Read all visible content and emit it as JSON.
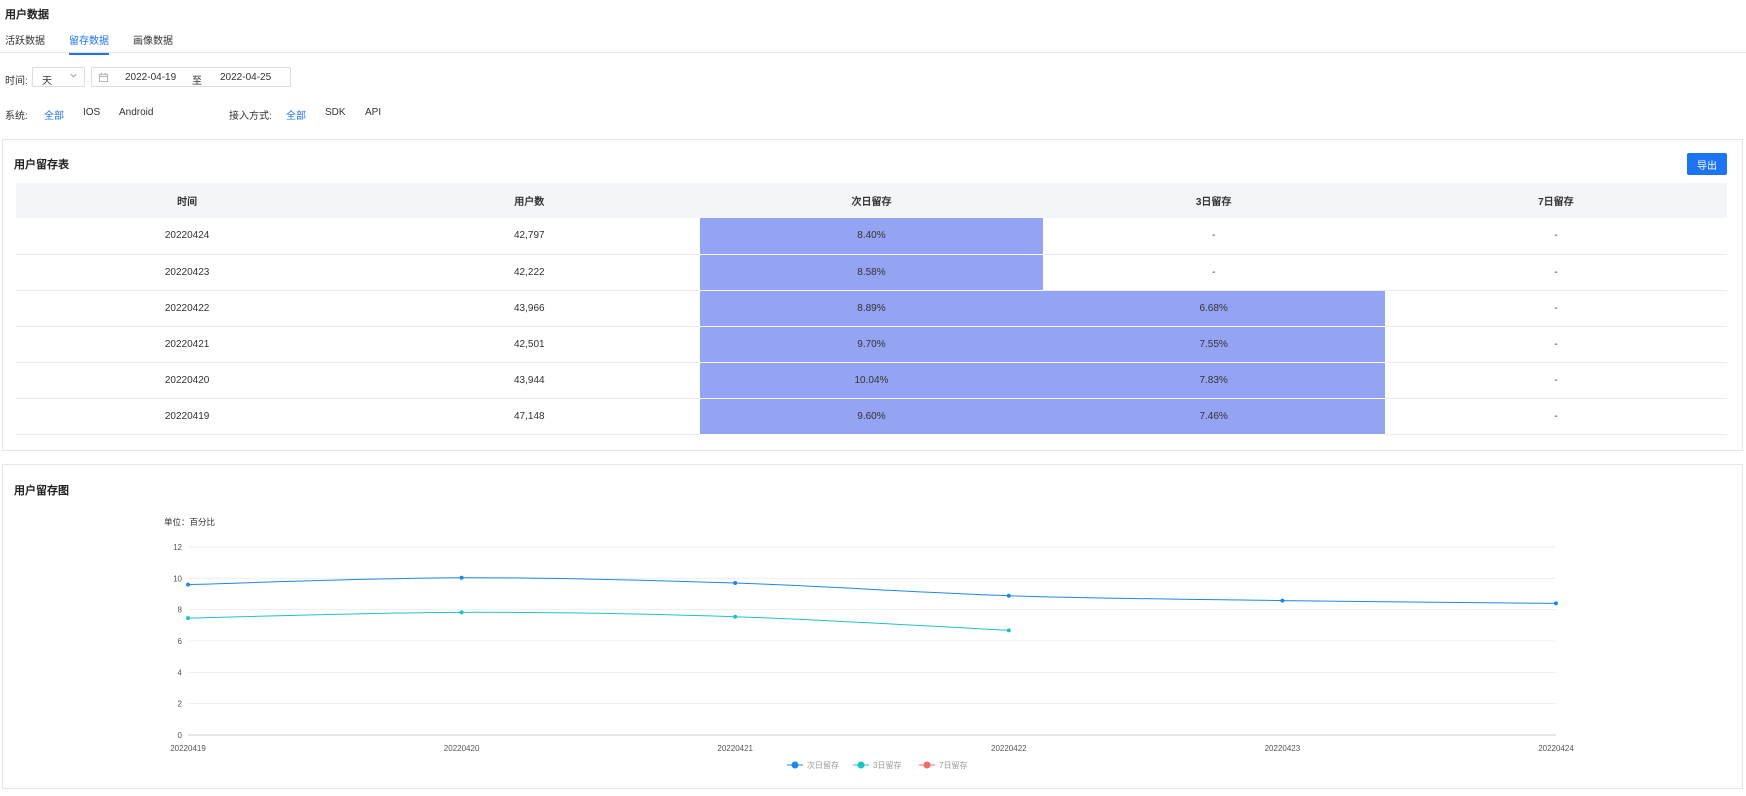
{
  "page": {
    "title": "用户数据"
  },
  "tabs": [
    {
      "label": "活跃数据",
      "active": false
    },
    {
      "label": "留存数据",
      "active": true
    },
    {
      "label": "画像数据",
      "active": false
    }
  ],
  "filters": {
    "time_label": "时间:",
    "granularity": "天",
    "date_from": "2022-04-19",
    "date_sep": "至",
    "date_to": "2022-04-25",
    "system_label": "系统:",
    "system_options": [
      {
        "label": "全部",
        "active": true
      },
      {
        "label": "IOS",
        "active": false
      },
      {
        "label": "Android",
        "active": false
      }
    ],
    "access_label": "接入方式:",
    "access_options": [
      {
        "label": "全部",
        "active": true
      },
      {
        "label": "SDK",
        "active": false
      },
      {
        "label": "API",
        "active": false
      }
    ]
  },
  "table_card": {
    "title": "用户留存表",
    "export_label": "导出",
    "columns": [
      "时间",
      "用户数",
      "次日留存",
      "3日留存",
      "7日留存"
    ],
    "rows": [
      {
        "date": "20220424",
        "users": "42,797",
        "d1": "8.40%",
        "d3": "-",
        "d7": "-"
      },
      {
        "date": "20220423",
        "users": "42,222",
        "d1": "8.58%",
        "d3": "-",
        "d7": "-"
      },
      {
        "date": "20220422",
        "users": "43,966",
        "d1": "8.89%",
        "d3": "6.68%",
        "d7": "-"
      },
      {
        "date": "20220421",
        "users": "42,501",
        "d1": "9.70%",
        "d3": "7.55%",
        "d7": "-"
      },
      {
        "date": "20220420",
        "users": "43,944",
        "d1": "10.04%",
        "d3": "7.83%",
        "d7": "-"
      },
      {
        "date": "20220419",
        "users": "47,148",
        "d1": "9.60%",
        "d3": "7.46%",
        "d7": "-"
      }
    ],
    "heat_color": "#94a3f2"
  },
  "chart_card": {
    "title": "用户留存图"
  },
  "chart_data": {
    "type": "line",
    "unit_label": "单位：百分比",
    "x": [
      "20220419",
      "20220420",
      "20220421",
      "20220422",
      "20220423",
      "20220424"
    ],
    "ylim": [
      0,
      12
    ],
    "yticks": [
      0,
      2,
      4,
      6,
      8,
      10,
      12
    ],
    "grid": true,
    "legend_position": "bottom",
    "series": [
      {
        "name": "次日留存",
        "color": "#1e88e5",
        "values": [
          9.6,
          10.04,
          9.7,
          8.89,
          8.58,
          8.4
        ]
      },
      {
        "name": "3日留存",
        "color": "#1cc5c5",
        "values": [
          7.46,
          7.83,
          7.55,
          6.68,
          null,
          null
        ]
      },
      {
        "name": "7日留存",
        "color": "#f06b6b",
        "values": [
          null,
          null,
          null,
          null,
          null,
          null
        ]
      }
    ]
  }
}
